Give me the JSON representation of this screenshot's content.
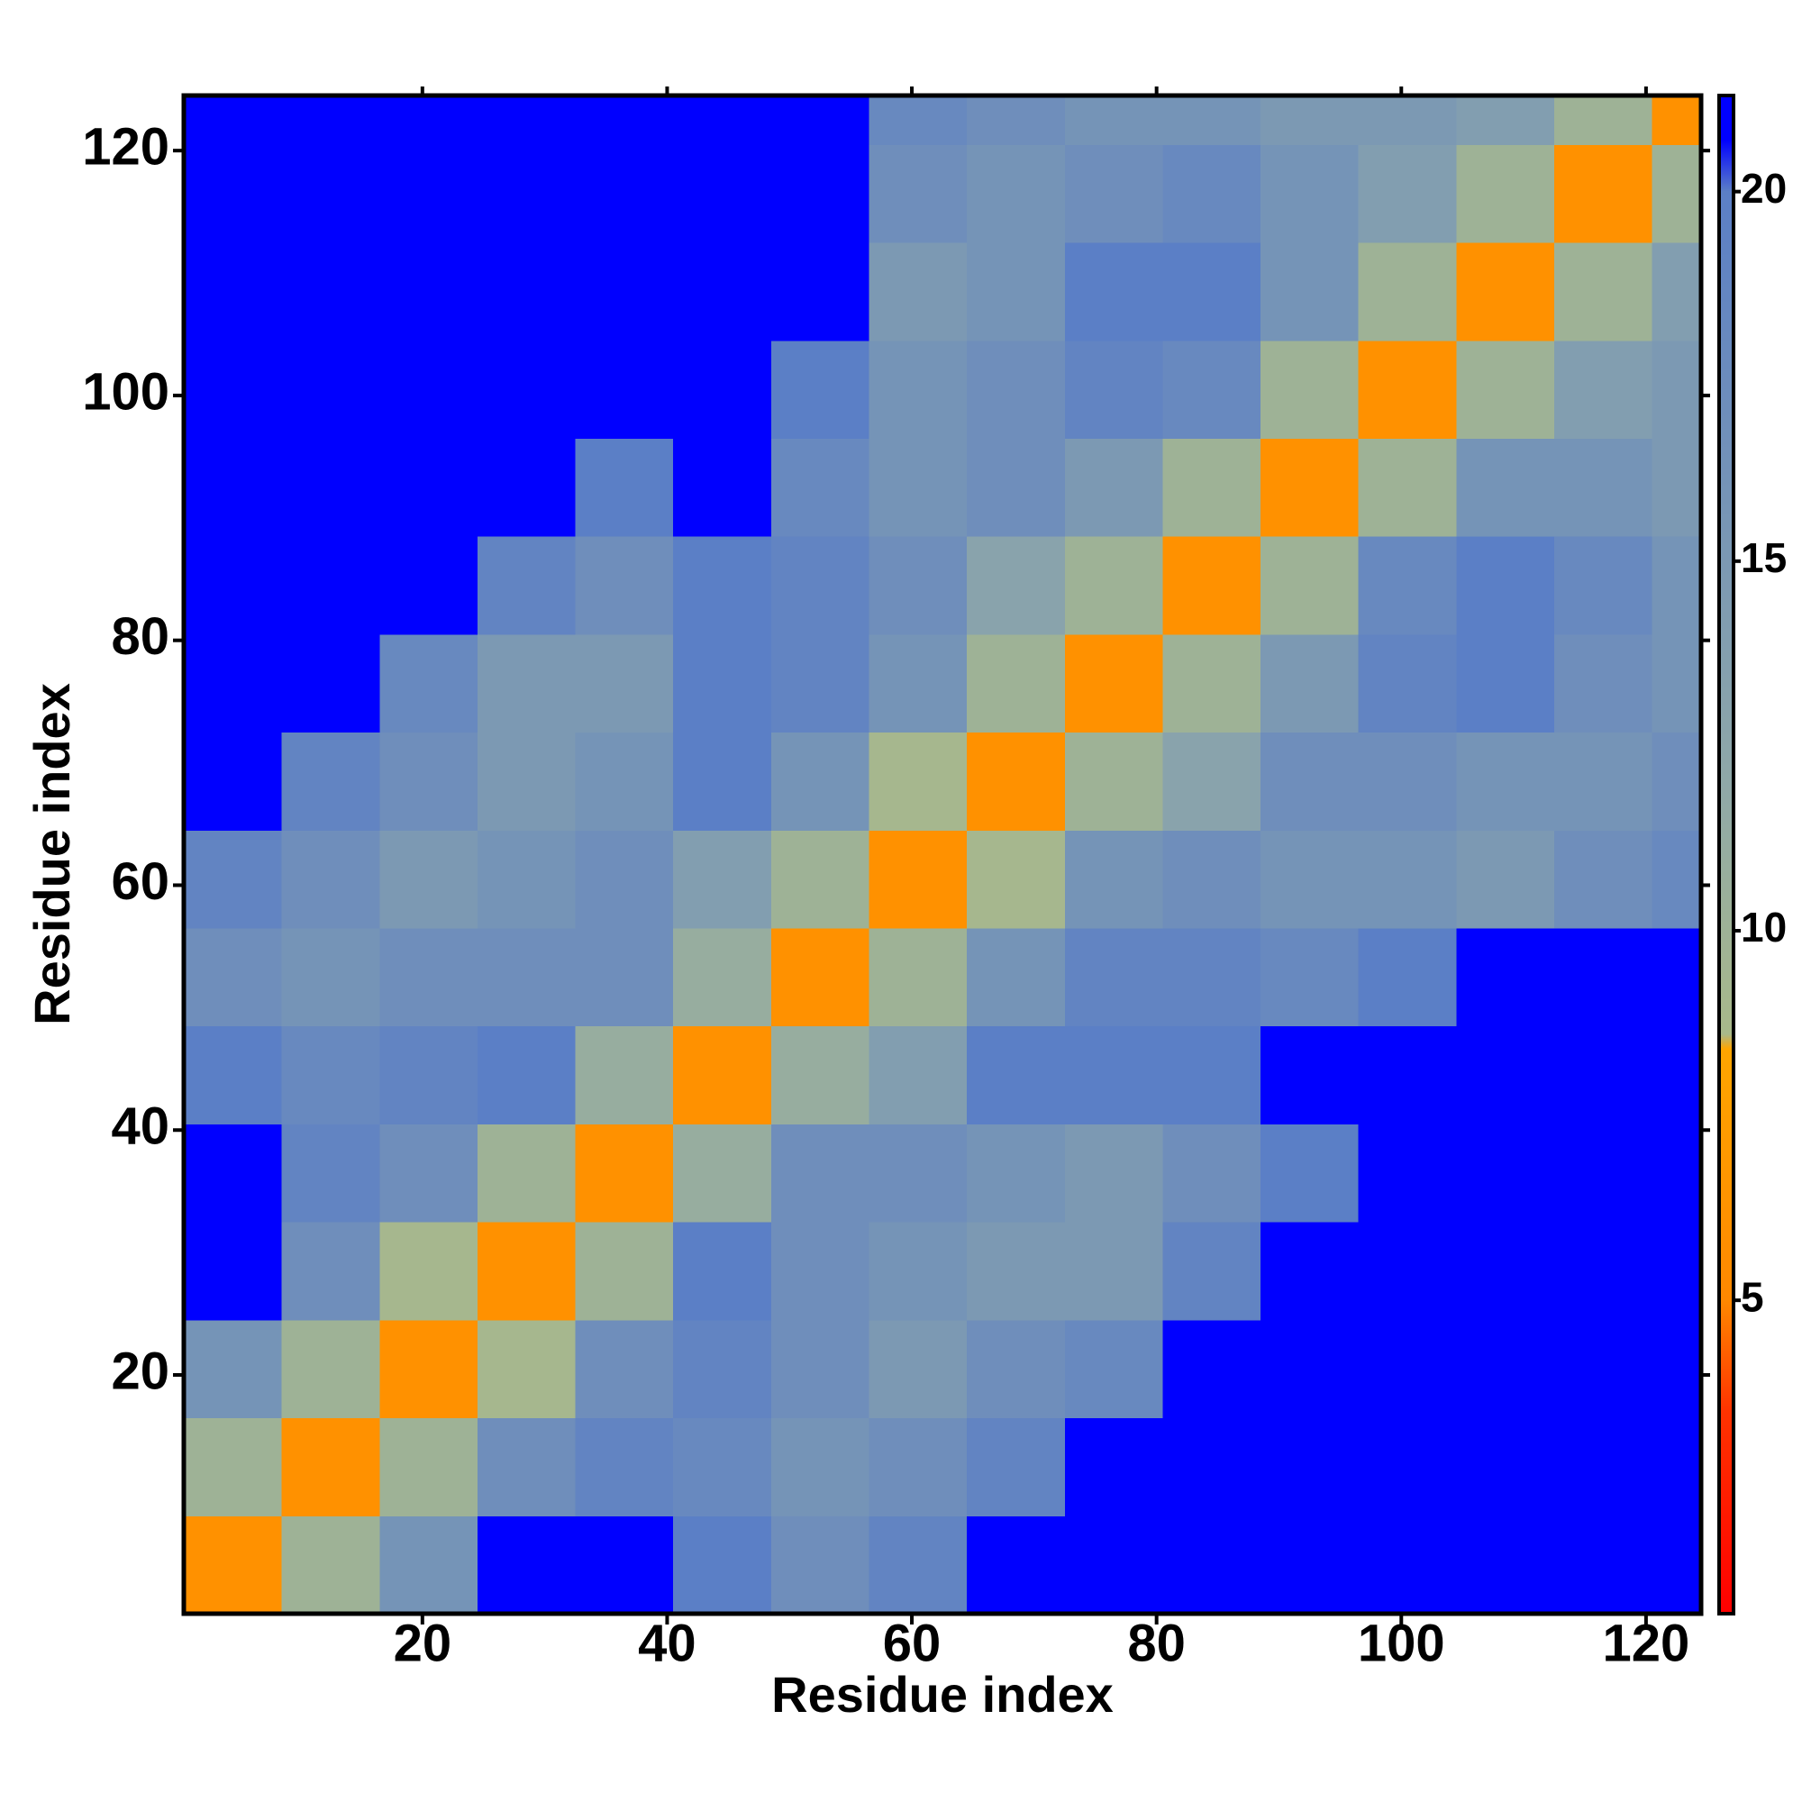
{
  "chart_data": {
    "type": "heatmap",
    "xlabel": "Residue index",
    "ylabel": "Residue index",
    "xbins": [
      0.5,
      8.5,
      16.5,
      24.5,
      32.5,
      40.5,
      48.5,
      56.5,
      64.5,
      72.5,
      80.5,
      88.5,
      96.5,
      104.5,
      112.5,
      120.5,
      124.5
    ],
    "ybins": [
      0.5,
      8.5,
      16.5,
      24.5,
      32.5,
      40.5,
      48.5,
      56.5,
      64.5,
      72.5,
      80.5,
      88.5,
      96.5,
      104.5,
      112.5,
      120.5,
      124.5
    ],
    "z": [
      [
        6,
        10,
        16,
        22,
        22,
        20,
        17,
        19,
        22,
        22,
        22,
        22,
        22,
        22,
        22,
        22
      ],
      [
        10,
        6,
        10,
        17,
        19,
        18,
        16,
        17,
        19,
        22,
        22,
        22,
        22,
        22,
        22,
        22
      ],
      [
        16,
        10,
        6,
        9,
        17,
        19,
        17,
        15,
        17,
        18,
        21,
        21,
        22,
        22,
        22,
        22
      ],
      [
        22,
        17,
        9,
        6,
        10,
        20,
        17,
        16,
        15,
        15,
        19,
        21,
        22,
        21,
        21,
        22
      ],
      [
        22,
        19,
        17,
        10,
        6,
        11,
        17,
        17,
        16,
        15,
        17,
        20,
        22,
        22,
        22,
        22
      ],
      [
        20,
        18,
        19,
        20,
        11,
        6,
        11,
        14,
        20,
        20,
        20,
        21,
        22,
        22,
        22,
        22
      ],
      [
        17,
        16,
        17,
        17,
        17,
        11,
        6,
        10,
        16,
        19,
        19,
        18,
        20,
        21,
        22,
        22
      ],
      [
        19,
        17,
        15,
        16,
        17,
        14,
        10,
        6,
        9,
        16,
        17,
        16,
        16,
        15,
        17,
        18
      ],
      [
        22,
        19,
        17,
        15,
        16,
        20,
        16,
        9,
        6,
        10,
        13,
        17,
        17,
        16,
        16,
        17
      ],
      [
        22,
        22,
        18,
        15,
        15,
        20,
        19,
        16,
        10,
        6,
        10,
        15,
        19,
        20,
        17,
        16
      ],
      [
        22,
        22,
        21,
        19,
        17,
        20,
        19,
        17,
        13,
        10,
        6,
        10,
        18,
        20,
        18,
        16
      ],
      [
        22,
        22,
        21,
        21,
        20,
        21,
        18,
        16,
        17,
        15,
        10,
        6,
        10,
        16,
        16,
        15
      ],
      [
        22,
        22,
        22,
        22,
        22,
        22,
        20,
        16,
        17,
        19,
        18,
        10,
        6,
        10,
        14,
        15
      ],
      [
        22,
        22,
        22,
        21,
        22,
        22,
        21,
        15,
        16,
        20,
        20,
        16,
        10,
        6,
        10,
        14
      ],
      [
        22,
        22,
        22,
        21,
        22,
        22,
        22,
        17,
        16,
        17,
        18,
        16,
        14,
        10,
        6,
        10
      ],
      [
        22,
        22,
        22,
        22,
        22,
        22,
        22,
        18,
        17,
        16,
        16,
        15,
        15,
        14,
        10,
        6
      ]
    ],
    "xlim": [
      0.5,
      124.5
    ],
    "ylim": [
      0.5,
      124.5
    ],
    "xticks": [
      20,
      40,
      60,
      80,
      100,
      120
    ],
    "yticks": [
      20,
      40,
      60,
      80,
      100,
      120
    ],
    "clim": [
      0.76,
      21.3
    ],
    "cticks": [
      5,
      10,
      15,
      20
    ],
    "colormap": [
      {
        "value": 0.76,
        "color": "#ff0000"
      },
      {
        "value": 3.5,
        "color": "#ff3300"
      },
      {
        "value": 5,
        "color": "#ff8800"
      },
      {
        "value": 8.4,
        "color": "#ffa500"
      },
      {
        "value": 8.6,
        "color": "#a9b98a"
      },
      {
        "value": 12,
        "color": "#8fa8a8"
      },
      {
        "value": 20,
        "color": "#5b7fc6"
      },
      {
        "value": 20.7,
        "color": "#0000ff"
      },
      {
        "value": 21.3,
        "color": "#0000ff"
      }
    ]
  }
}
